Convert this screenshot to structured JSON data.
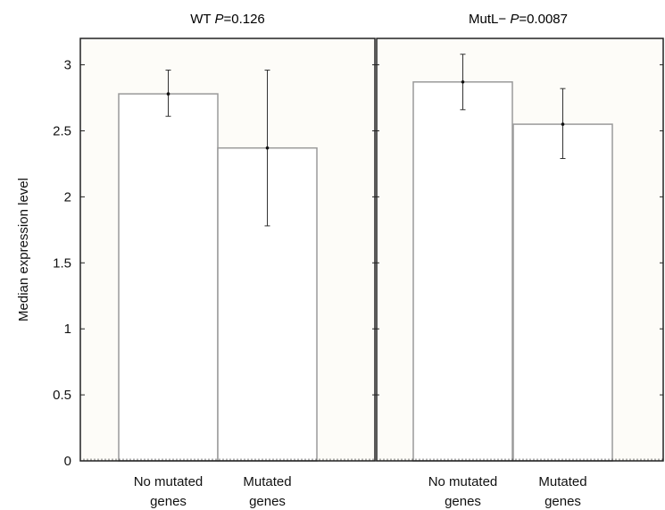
{
  "chart_data": [
    {
      "type": "bar",
      "title_prefix": "WT ",
      "title_p_label": "P",
      "title_p_value": "=0.126",
      "ylabel": "Median expression level",
      "ylim": [
        0,
        3.2
      ],
      "yticks": [
        "0",
        "0.5",
        "1",
        "1.5",
        "2",
        "2.5",
        "3"
      ],
      "categories": [
        {
          "line1": "No mutated",
          "line2": "genes"
        },
        {
          "line1": "Mutated",
          "line2": "genes"
        }
      ],
      "values": [
        2.78,
        2.37
      ],
      "error_low": [
        2.61,
        1.78
      ],
      "error_high": [
        2.96,
        2.96
      ]
    },
    {
      "type": "bar",
      "title_prefix": "MutL− ",
      "title_p_label": "P",
      "title_p_value": "=0.0087",
      "ylim": [
        0,
        3.2
      ],
      "categories": [
        {
          "line1": "No mutated",
          "line2": "genes"
        },
        {
          "line1": "Mutated",
          "line2": "genes"
        }
      ],
      "values": [
        2.87,
        2.55
      ],
      "error_low": [
        2.66,
        2.29
      ],
      "error_high": [
        3.08,
        2.82
      ]
    }
  ],
  "colors": {
    "plot_background": "#fdfcf8",
    "bar_fill": "#ffffff",
    "bar_stroke": "#9a9a9a",
    "axis": "#222222",
    "error_bar": "#333333"
  }
}
